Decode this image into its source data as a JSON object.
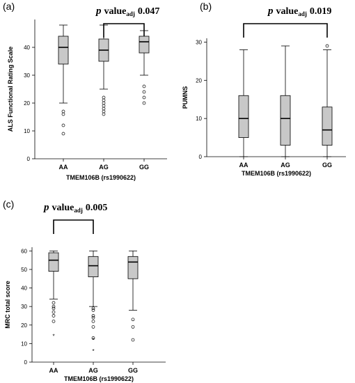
{
  "chart_data": [
    {
      "type": "box",
      "panel_label": "(a)",
      "annotation": {
        "p": "p",
        "value_word": "value",
        "subscript": "adj",
        "number": "0.047"
      },
      "bracket": [
        "AG",
        "GG"
      ],
      "xlabel": "TMEM106B (rs1990622)",
      "ylabel": "ALS Functional Rating Scale",
      "ylim": [
        0,
        50
      ],
      "yticks": [
        0,
        10,
        20,
        30,
        40
      ],
      "categories": [
        "AA",
        "AG",
        "GG"
      ],
      "boxes": [
        {
          "cat": "AA",
          "whisker_low": 20,
          "q1": 34,
          "median": 40,
          "q3": 44,
          "whisker_high": 48,
          "outliers": [
            17,
            16,
            12,
            9
          ],
          "extremes": []
        },
        {
          "cat": "AG",
          "whisker_low": 25,
          "q1": 35,
          "median": 39,
          "q3": 43,
          "whisker_high": 48,
          "outliers": [
            22,
            21,
            20,
            19,
            18,
            17,
            16
          ],
          "extremes": []
        },
        {
          "cat": "GG",
          "whisker_low": 30,
          "q1": 38,
          "median": 42,
          "q3": 44,
          "whisker_high": 46,
          "outliers": [
            26,
            24,
            22,
            20
          ],
          "extremes": []
        }
      ]
    },
    {
      "type": "box",
      "panel_label": "(b)",
      "annotation": {
        "p": "p",
        "value_word": "value",
        "subscript": "adj",
        "number": "0.019"
      },
      "bracket": [
        "AA",
        "GG"
      ],
      "xlabel": "TMEM106B (rs1990622)",
      "ylabel": "PUMNS",
      "ylim": [
        0,
        31
      ],
      "yticks": [
        0,
        10,
        20,
        30
      ],
      "categories": [
        "AA",
        "AG",
        "GG"
      ],
      "boxes": [
        {
          "cat": "AA",
          "whisker_low": 0,
          "q1": 5,
          "median": 10,
          "q3": 16,
          "whisker_high": 28,
          "outliers": [],
          "extremes": []
        },
        {
          "cat": "AG",
          "whisker_low": 0,
          "q1": 3,
          "median": 10,
          "q3": 16,
          "whisker_high": 29,
          "outliers": [],
          "extremes": []
        },
        {
          "cat": "GG",
          "whisker_low": 0,
          "q1": 3,
          "median": 7,
          "q3": 13,
          "whisker_high": 28,
          "outliers": [
            29
          ],
          "extremes": []
        }
      ]
    },
    {
      "type": "box",
      "panel_label": "(c)",
      "annotation": {
        "p": "p",
        "value_word": "value",
        "subscript": "adj",
        "number": "0.005"
      },
      "bracket": [
        "AA",
        "AG"
      ],
      "xlabel": "TMEM106B (rs1990622)",
      "ylabel": "MRC total score",
      "ylim": [
        0,
        62
      ],
      "yticks": [
        0,
        10,
        20,
        30,
        40,
        50,
        60
      ],
      "categories": [
        "AA",
        "AG",
        "GG"
      ],
      "boxes": [
        {
          "cat": "AA",
          "whisker_low": 34,
          "q1": 49,
          "median": 55,
          "q3": 59,
          "whisker_high": 60,
          "outliers": [
            32,
            30,
            29,
            27,
            25,
            22
          ],
          "extremes": [
            14
          ]
        },
        {
          "cat": "AG",
          "whisker_low": 30,
          "q1": 46,
          "median": 52,
          "q3": 57,
          "whisker_high": 60,
          "outliers": [
            29,
            28,
            25,
            24,
            22,
            19,
            13
          ],
          "extremes": [
            12,
            6
          ]
        },
        {
          "cat": "GG",
          "whisker_low": 28,
          "q1": 45,
          "median": 54,
          "q3": 57,
          "whisker_high": 60,
          "outliers": [
            23,
            19,
            12
          ],
          "extremes": []
        }
      ]
    }
  ]
}
